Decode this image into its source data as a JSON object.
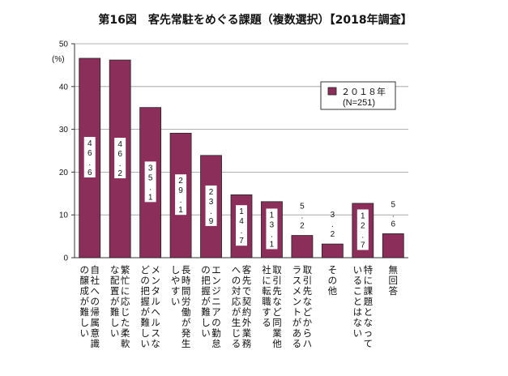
{
  "chart_data": {
    "type": "bar",
    "title": "第16図　客先常駐をめぐる課題（複数選択）【2018年調査】",
    "ylabel": "(%)",
    "xlabel": "",
    "ylim": [
      0,
      50
    ],
    "yticks": [
      0,
      10,
      20,
      30,
      40,
      50
    ],
    "grid": true,
    "legend": {
      "label": "２０１８年",
      "sublabel": "(N=251)",
      "position": "right"
    },
    "bar_color": "#8b2f5a",
    "categories": [
      [
        "自社への帰属意識",
        "の醸成が難しい"
      ],
      [
        "繁忙に応じた柔軟",
        "な配置が難しい"
      ],
      [
        "メンタルヘルスな",
        "どの把握が難しい"
      ],
      [
        "長時間労働が発生",
        "しやすい"
      ],
      [
        "エンジニアの勤怠",
        "の把握が難しい"
      ],
      [
        "客先で契約外業務",
        "への対応が生じる"
      ],
      [
        "取引先など同業他",
        "社に転職する"
      ],
      [
        "取引先などからハ",
        "ラスメントがある"
      ],
      [
        "その他"
      ],
      [
        "特に課題となって",
        "いることはない"
      ],
      [
        "無回答"
      ]
    ],
    "values": [
      46.6,
      46.2,
      35.1,
      29.1,
      23.9,
      14.7,
      13.1,
      5.2,
      3.2,
      12.7,
      5.6
    ],
    "value_labels": [
      "46.6",
      "46.2",
      "35.1",
      "29.1",
      "23.9",
      "14.7",
      "13.1",
      "5.2",
      "3.2",
      "12.7",
      "5.6"
    ]
  }
}
